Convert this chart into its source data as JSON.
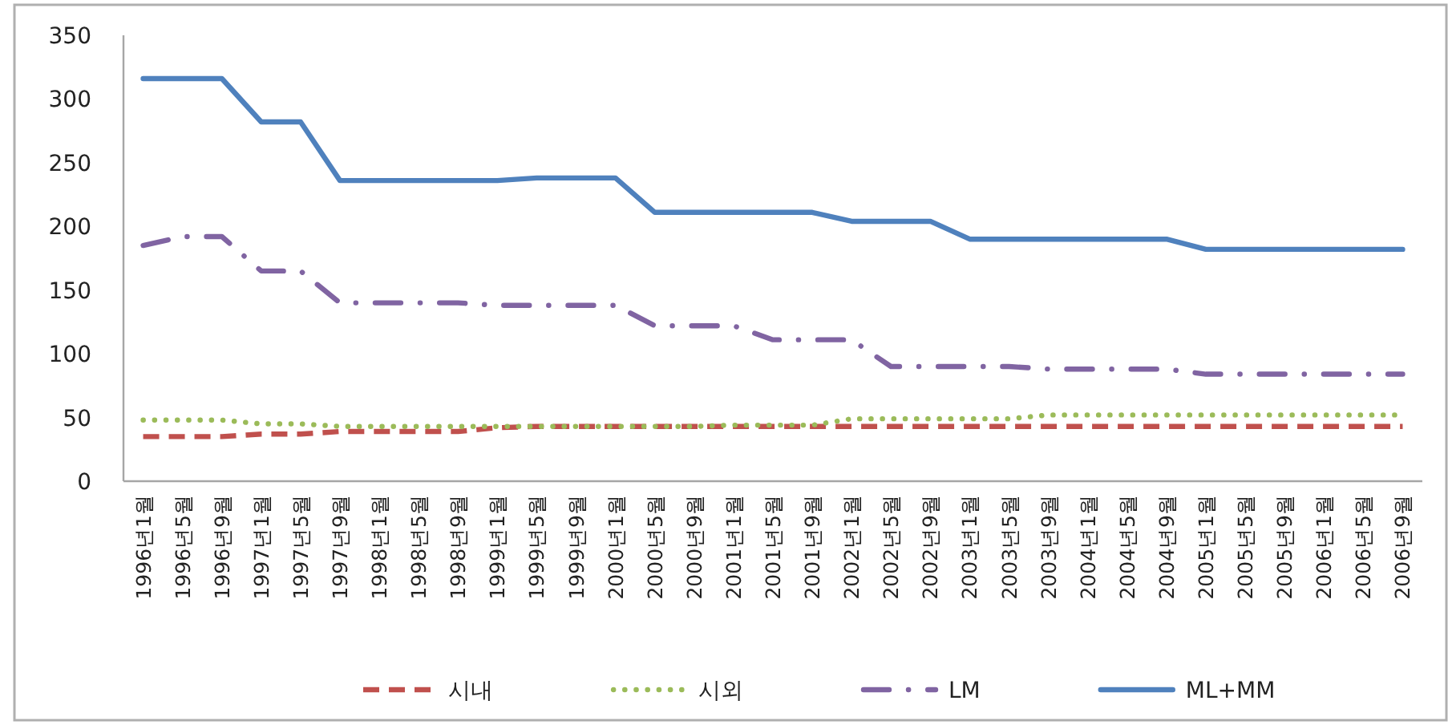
{
  "chart_data": {
    "type": "line",
    "categories": [
      "1996년1월",
      "1996년5월",
      "1996년9월",
      "1997년1월",
      "1997년5월",
      "1997년9월",
      "1998년1월",
      "1998년5월",
      "1998년9월",
      "1999년1월",
      "1999년5월",
      "1999년9월",
      "2000년1월",
      "2000년5월",
      "2000년9월",
      "2001년1월",
      "2001년5월",
      "2001년9월",
      "2002년1월",
      "2002년5월",
      "2002년9월",
      "2003년1월",
      "2003년5월",
      "2003년9월",
      "2004년1월",
      "2004년5월",
      "2004년9월",
      "2005년1월",
      "2005년5월",
      "2005년9월",
      "2006년1월",
      "2006년5월",
      "2006년9월"
    ],
    "series": [
      {
        "name": "시내",
        "color": "#c0504d",
        "line_style": "dashed",
        "values": [
          35,
          35,
          35,
          37,
          37,
          39,
          39,
          39,
          39,
          42,
          43,
          43,
          43,
          43,
          43,
          43,
          43,
          43,
          43,
          43,
          43,
          43,
          43,
          43,
          43,
          43,
          43,
          43,
          43,
          43,
          43,
          43,
          43
        ]
      },
      {
        "name": "시외",
        "color": "#9bbb59",
        "line_style": "dotted",
        "values": [
          48,
          48,
          48,
          45,
          45,
          43,
          43,
          43,
          43,
          43,
          43,
          43,
          43,
          43,
          43,
          44,
          44,
          44,
          49,
          49,
          49,
          49,
          49,
          52,
          52,
          52,
          52,
          52,
          52,
          52,
          52,
          52,
          52
        ]
      },
      {
        "name": "LM",
        "color": "#8064a2",
        "line_style": "dashdot",
        "values": [
          185,
          192,
          192,
          165,
          165,
          140,
          140,
          140,
          140,
          138,
          138,
          138,
          138,
          122,
          122,
          122,
          111,
          111,
          111,
          90,
          90,
          90,
          90,
          88,
          88,
          88,
          88,
          84,
          84,
          84,
          84,
          84,
          84
        ]
      },
      {
        "name": "ML+MM",
        "color": "#4f81bd",
        "line_style": "solid",
        "values": [
          316,
          316,
          316,
          282,
          282,
          236,
          236,
          236,
          236,
          236,
          238,
          238,
          238,
          211,
          211,
          211,
          211,
          211,
          204,
          204,
          204,
          190,
          190,
          190,
          190,
          190,
          190,
          182,
          182,
          182,
          182,
          182,
          182
        ]
      }
    ],
    "ylim": [
      0,
      350
    ],
    "yticks": [
      0,
      50,
      100,
      150,
      200,
      250,
      300,
      350
    ],
    "grid": false,
    "legend": "bottom",
    "marker": "none"
  }
}
